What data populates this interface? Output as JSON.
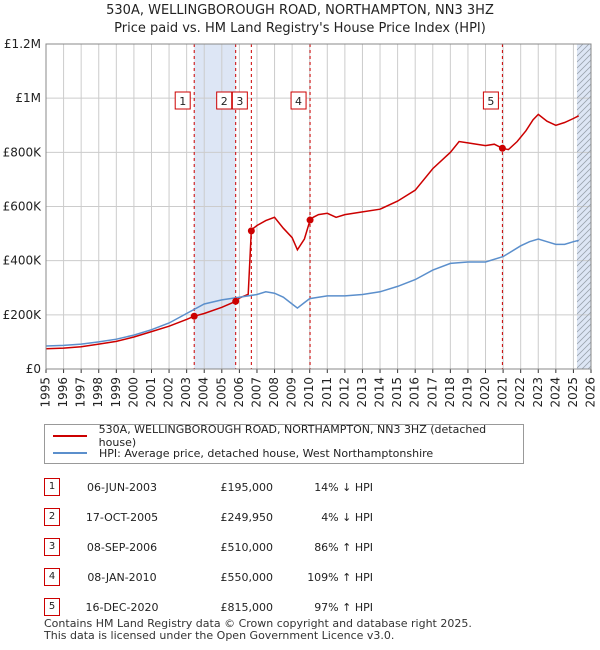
{
  "title_line1": "530A, WELLINGBOROUGH ROAD, NORTHAMPTON, NN3 3HZ",
  "title_line2": "Price paid vs. HM Land Registry's House Price Index (HPI)",
  "colors": {
    "property": "#cc0000",
    "hpi": "#5b8fcc",
    "shade": "#dde6f5",
    "grid": "#cccccc",
    "marker_border": "#cc0000"
  },
  "chart_data": {
    "type": "line",
    "title": "Price paid vs. HM Land Registry's House Price Index (HPI)",
    "xlim": [
      1995,
      2026
    ],
    "ylim": [
      0,
      1200000
    ],
    "y_ticks": [
      {
        "value": 0,
        "label": "£0"
      },
      {
        "value": 200000,
        "label": "£200K"
      },
      {
        "value": 400000,
        "label": "£400K"
      },
      {
        "value": 600000,
        "label": "£600K"
      },
      {
        "value": 800000,
        "label": "£800K"
      },
      {
        "value": 1000000,
        "label": "£1M"
      },
      {
        "value": 1200000,
        "label": "£1.2M"
      }
    ],
    "x_ticks": [
      "1995",
      "1996",
      "1997",
      "1998",
      "1999",
      "2000",
      "2001",
      "2002",
      "2003",
      "2004",
      "2005",
      "2006",
      "2007",
      "2008",
      "2009",
      "2010",
      "2011",
      "2012",
      "2013",
      "2014",
      "2015",
      "2016",
      "2017",
      "2018",
      "2019",
      "2020",
      "2021",
      "2022",
      "2023",
      "2024",
      "2025",
      "2026"
    ],
    "grid": true,
    "legend_position": "below",
    "shaded_spans": [
      [
        2003.43,
        2005.79
      ],
      [
        2025.2,
        2026
      ]
    ],
    "series": [
      {
        "name": "530A, WELLINGBOROUGH ROAD, NORTHAMPTON, NN3 3HZ (detached house)",
        "x": [
          1995,
          1996,
          1997,
          1998,
          1999,
          2000,
          2001,
          2002,
          2003,
          2003.43,
          2004,
          2005,
          2005.79,
          2006,
          2006.5,
          2006.68,
          2006.8,
          2007,
          2007.5,
          2008,
          2008.5,
          2009,
          2009.3,
          2009.7,
          2010.02,
          2010.2,
          2010.5,
          2011,
          2011.5,
          2012,
          2013,
          2014,
          2015,
          2016,
          2017,
          2018,
          2018.5,
          2019,
          2019.5,
          2020,
          2020.5,
          2020.96,
          2021.3,
          2021.8,
          2022.3,
          2022.7,
          2023,
          2023.5,
          2024,
          2024.5,
          2025,
          2025.3
        ],
        "y": [
          75000,
          77000,
          82000,
          92000,
          102000,
          118000,
          138000,
          158000,
          183000,
          195000,
          205000,
          228000,
          249950,
          262000,
          276000,
          510000,
          520000,
          530000,
          548000,
          560000,
          520000,
          485000,
          440000,
          480000,
          550000,
          560000,
          570000,
          575000,
          560000,
          570000,
          580000,
          590000,
          620000,
          660000,
          740000,
          800000,
          840000,
          835000,
          830000,
          825000,
          830000,
          815000,
          810000,
          840000,
          880000,
          920000,
          940000,
          915000,
          900000,
          910000,
          925000,
          935000
        ]
      },
      {
        "name": "HPI: Average price, detached house, West Northamptonshire",
        "x": [
          1995,
          1996,
          1997,
          1998,
          1999,
          2000,
          2001,
          2002,
          2003,
          2004,
          2005,
          2006,
          2007,
          2007.5,
          2008,
          2008.5,
          2009,
          2009.3,
          2009.7,
          2010,
          2011,
          2012,
          2013,
          2014,
          2015,
          2016,
          2017,
          2018,
          2019,
          2020,
          2021,
          2022,
          2022.5,
          2023,
          2023.5,
          2024,
          2024.5,
          2025,
          2025.3
        ],
        "y": [
          85000,
          87000,
          92000,
          100000,
          110000,
          125000,
          145000,
          170000,
          205000,
          240000,
          255000,
          265000,
          275000,
          285000,
          280000,
          265000,
          240000,
          225000,
          245000,
          260000,
          270000,
          270000,
          275000,
          285000,
          305000,
          330000,
          365000,
          390000,
          395000,
          395000,
          415000,
          455000,
          470000,
          480000,
          470000,
          460000,
          460000,
          470000,
          475000
        ]
      }
    ],
    "sales": [
      {
        "num": "1",
        "x": 2003.43,
        "y": 195000
      },
      {
        "num": "2",
        "x": 2005.79,
        "y": 249950
      },
      {
        "num": "3",
        "x": 2006.68,
        "y": 510000
      },
      {
        "num": "4",
        "x": 2010.02,
        "y": 550000
      },
      {
        "num": "5",
        "x": 2020.96,
        "y": 815000
      }
    ]
  },
  "legend": {
    "property_label": "530A, WELLINGBOROUGH ROAD, NORTHAMPTON, NN3 3HZ (detached house)",
    "hpi_label": "HPI: Average price, detached house, West Northamptonshire"
  },
  "sales_table": [
    {
      "num": "1",
      "date": "06-JUN-2003",
      "price": "£195,000",
      "hpi": "14% ↓ HPI"
    },
    {
      "num": "2",
      "date": "17-OCT-2005",
      "price": "£249,950",
      "hpi": "4% ↓ HPI"
    },
    {
      "num": "3",
      "date": "08-SEP-2006",
      "price": "£510,000",
      "hpi": "86% ↑ HPI"
    },
    {
      "num": "4",
      "date": "08-JAN-2010",
      "price": "£550,000",
      "hpi": "109% ↑ HPI"
    },
    {
      "num": "5",
      "date": "16-DEC-2020",
      "price": "£815,000",
      "hpi": "97% ↑ HPI"
    }
  ],
  "footer_line1": "Contains HM Land Registry data © Crown copyright and database right 2025.",
  "footer_line2": "This data is licensed under the Open Government Licence v3.0."
}
